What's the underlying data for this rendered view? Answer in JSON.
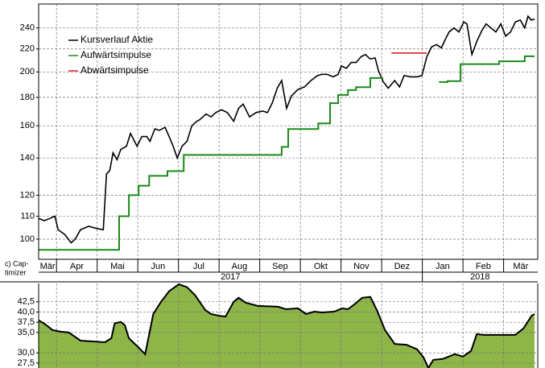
{
  "chart_data": [
    {
      "type": "line",
      "log_scale": true,
      "grid": true,
      "legend": "upper left",
      "xlim": [
        0.56,
        12.84
      ],
      "ylim": [
        92,
        265
      ],
      "yticks": [
        100,
        110,
        120,
        140,
        160,
        180,
        200,
        220,
        240
      ],
      "months": [
        "Mär",
        "Apr",
        "Mai",
        "Jun",
        "Jul",
        "Aug",
        "Sep",
        "Okt",
        "Nov",
        "Dez",
        "Jan",
        "Feb",
        "Mär"
      ],
      "years": [
        "2017",
        "2018"
      ],
      "series": [
        {
          "name": "Kursverlauf Aktie",
          "color": "#000000",
          "x": [
            0.56,
            0.7,
            0.84,
            0.96,
            1.04,
            1.2,
            1.36,
            1.46,
            1.59,
            1.79,
            1.99,
            2.15,
            2.23,
            2.31,
            2.39,
            2.49,
            2.58,
            2.72,
            2.82,
            2.98,
            3.1,
            3.22,
            3.3,
            3.42,
            3.53,
            3.67,
            3.77,
            3.87,
            3.97,
            4.09,
            4.21,
            4.33,
            4.45,
            4.52,
            4.68,
            4.8,
            4.92,
            5.06,
            5.2,
            5.36,
            5.48,
            5.59,
            5.75,
            5.91,
            6.07,
            6.19,
            6.31,
            6.43,
            6.54,
            6.66,
            6.78,
            6.94,
            7.1,
            7.26,
            7.42,
            7.53,
            7.65,
            7.81,
            7.93,
            8.01,
            8.13,
            8.25,
            8.37,
            8.49,
            8.6,
            8.72,
            8.84,
            8.92,
            9.04,
            9.16,
            9.32,
            9.44,
            9.55,
            9.71,
            9.87,
            9.99,
            10.11,
            10.23,
            10.35,
            10.47,
            10.58,
            10.66,
            10.78,
            10.9,
            11.02,
            11.1,
            11.22,
            11.34,
            11.46,
            11.57,
            11.69,
            11.81,
            11.93,
            12.05,
            12.17,
            12.29,
            12.41,
            12.52,
            12.6,
            12.68,
            12.76
          ],
          "values": [
            109,
            108,
            109,
            110,
            104,
            102,
            98.5,
            100,
            104,
            105.5,
            104.5,
            104,
            131,
            133,
            143,
            139,
            145,
            147,
            155,
            147,
            153,
            153,
            150,
            158,
            157,
            159,
            153,
            147,
            140,
            147,
            150,
            160,
            163,
            164,
            168,
            166,
            169,
            171,
            169,
            163,
            172,
            175,
            166,
            169,
            170,
            169,
            176,
            187,
            193,
            172,
            181,
            186,
            188,
            193,
            197,
            198,
            198,
            196,
            198,
            205,
            203,
            208,
            208,
            213,
            215,
            211,
            212,
            201,
            192,
            187,
            193,
            188,
            197,
            196,
            196,
            197,
            213,
            222,
            224,
            221,
            230,
            236,
            240,
            236,
            246,
            244,
            215,
            227,
            237,
            244,
            240,
            236,
            244,
            232,
            236,
            246,
            248,
            240,
            252,
            248,
            249
          ]
        },
        {
          "name": "Aufwärtsimpulse",
          "color": "#1a8a1a",
          "step": "post",
          "x": [
            0.56,
            2.54,
            2.78,
            3.02,
            3.28,
            3.73,
            4.13,
            6.54,
            6.7,
            7.44,
            7.73,
            7.93,
            8.17,
            8.37,
            8.72,
            9.04,
            10.41,
            10.62,
            10.94,
            11.89,
            12.52,
            12.76
          ],
          "values": [
            95.7,
            110,
            120,
            124.8,
            130,
            132.6,
            141.8,
            146.6,
            157.8,
            161.6,
            175.7,
            181.8,
            185.5,
            187.8,
            195,
            null,
            191.8,
            192.5,
            206.6,
            209,
            213.4,
            213.4
          ]
        },
        {
          "name": "Abwärtsimpulse",
          "color": "#e02020",
          "x": [
            9.24,
            10.11
          ],
          "values": [
            216.3,
            216.3
          ]
        }
      ]
    },
    {
      "type": "area",
      "grid": true,
      "label_lines": [
        "c) Cap-",
        "timizer"
      ],
      "color": "#8db548",
      "xlim": [
        0.56,
        12.84
      ],
      "ylim": [
        26.3,
        47.0
      ],
      "yticks": [
        {
          "value": 27.5,
          "label": "27,5"
        },
        {
          "value": 30,
          "label": "30,0"
        },
        {
          "value": 35,
          "label": "35,0"
        },
        {
          "value": 37.5,
          "label": "37,5"
        },
        {
          "value": 40,
          "label": "40,0"
        },
        {
          "value": 42.5,
          "label": "42,5"
        }
      ],
      "x": [
        0.56,
        0.7,
        0.9,
        1.1,
        1.3,
        1.59,
        1.89,
        2.19,
        2.35,
        2.43,
        2.58,
        2.68,
        2.78,
        3.02,
        3.18,
        3.38,
        3.57,
        3.77,
        4.01,
        4.21,
        4.41,
        4.66,
        4.8,
        5.0,
        5.16,
        5.36,
        5.48,
        5.65,
        5.95,
        6.45,
        6.64,
        6.94,
        7.14,
        7.34,
        7.53,
        7.83,
        8.03,
        8.17,
        8.33,
        8.52,
        8.72,
        8.88,
        9.08,
        9.32,
        9.61,
        9.87,
        10.03,
        10.15,
        10.27,
        10.5,
        10.8,
        11.0,
        11.2,
        11.34,
        11.5,
        12.29,
        12.49,
        12.69,
        12.76
      ],
      "values": [
        37.96,
        37.17,
        35.6,
        35.2,
        35.0,
        33.0,
        32.8,
        32.6,
        33.6,
        37.2,
        37.6,
        36.8,
        33.6,
        31.3,
        29.7,
        39.5,
        42.5,
        45.1,
        46.8,
        46.1,
        44.1,
        40.5,
        39.5,
        39.1,
        38.9,
        42.5,
        43.5,
        42.3,
        41.5,
        41.3,
        40.7,
        40.9,
        39.5,
        40.1,
        39.9,
        40.1,
        40.9,
        40.7,
        41.9,
        43.5,
        43.7,
        40.5,
        35.6,
        32.2,
        32.0,
        30.9,
        28.9,
        26.3,
        28.3,
        28.5,
        29.7,
        29.1,
        30.5,
        34.6,
        34.4,
        34.4,
        36.0,
        39.1,
        39.5
      ]
    }
  ]
}
